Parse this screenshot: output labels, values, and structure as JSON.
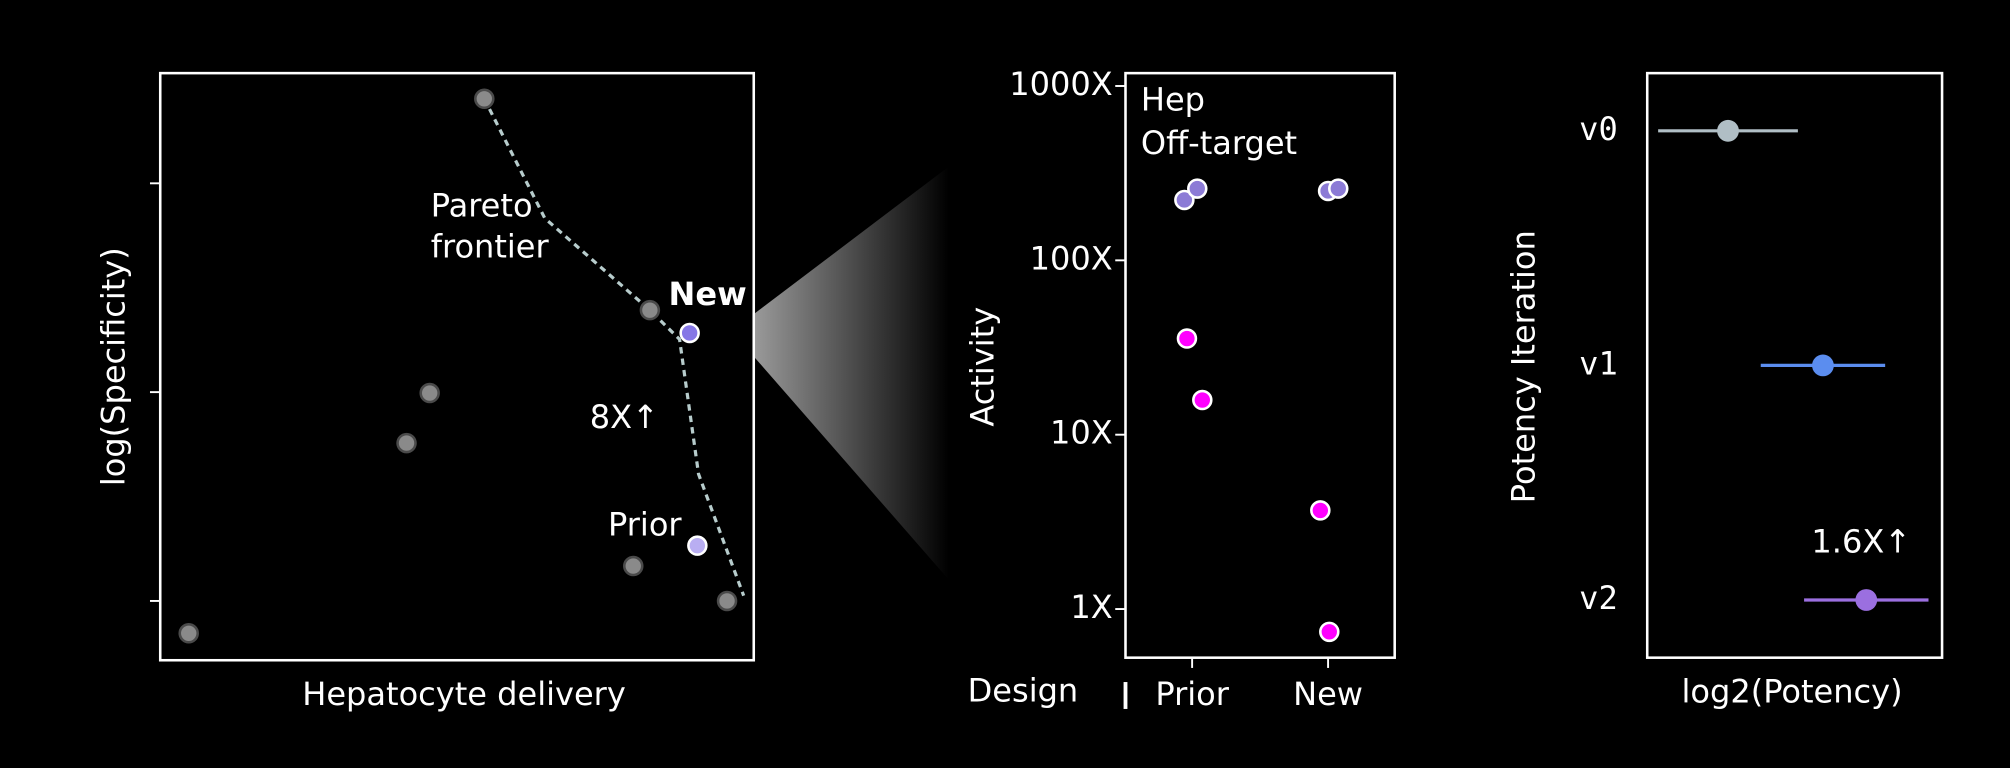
{
  "chart_data": [
    {
      "type": "scatter",
      "xlabel": "Hepatocyte delivery",
      "ylabel": "log(Specificity)",
      "log_y": true,
      "xlim": [
        0,
        1
      ],
      "ylim": [
        0.52,
        337
      ],
      "yticks": [
        1,
        10,
        100
      ],
      "series": [
        {
          "color": "#8a8a8a",
          "x": [
            0.546,
            0.825,
            0.454,
            0.415,
            0.797,
            0.955,
            0.048
          ],
          "y": [
            254,
            24.7,
            9.9,
            5.7,
            1.47,
            1.0,
            0.7
          ]
        },
        {
          "name": "New",
          "color": "#8677e6",
          "x": [
            0.892
          ],
          "y": [
            19.2
          ]
        },
        {
          "name": "Prior",
          "color": "#b9aef2",
          "x": [
            0.905
          ],
          "y": [
            1.84
          ]
        }
      ],
      "frontier": {
        "label_lines": [
          "Pareto",
          "frontier"
        ],
        "color": "#b7cccc",
        "x": [
          0.546,
          0.648,
          0.825,
          0.875,
          0.907,
          0.983
        ],
        "y": [
          254,
          68,
          24.7,
          17.9,
          4.05,
          1.06
        ]
      },
      "annotation": "8X↑"
    },
    {
      "type": "scatter",
      "ylabel": "Activity",
      "xlabel": "Design",
      "log_y": true,
      "xlim": [
        -0.49,
        1.49
      ],
      "ylim": [
        0.526,
        1185
      ],
      "xticks": [
        {
          "value": 0,
          "label": "Prior"
        },
        {
          "value": 1,
          "label": "New"
        }
      ],
      "yticks": [
        {
          "value": 1,
          "label": "1X"
        },
        {
          "value": 10,
          "label": "10X"
        },
        {
          "value": 100,
          "label": "100X"
        },
        {
          "value": 1000,
          "label": "1000X"
        }
      ],
      "series": [
        {
          "name": "Hep",
          "color": "#8c7bd6",
          "x": [
            -0.057,
            0.038,
            1.0,
            1.075
          ],
          "values": [
            222,
            258,
            250,
            258
          ]
        },
        {
          "name": "Off-target",
          "color": "#ff00ff",
          "x": [
            -0.038,
            0.075,
            0.943,
            1.009
          ],
          "values": [
            35.6,
            15.8,
            3.68,
            0.74
          ]
        }
      ]
    },
    {
      "type": "errorbar",
      "xlabel": "log2(Potency)",
      "ylabel": "Potency Iteration",
      "xlim": [
        0,
        1
      ],
      "categories": [
        "v0",
        "v1",
        "v2"
      ],
      "values": [
        0.274,
        0.596,
        0.743
      ],
      "errors": [
        0.237,
        0.211,
        0.211
      ],
      "colors": [
        "#b0bec5",
        "#5b8def",
        "#9b6fe0"
      ],
      "annotation": "1.6X↑"
    }
  ]
}
